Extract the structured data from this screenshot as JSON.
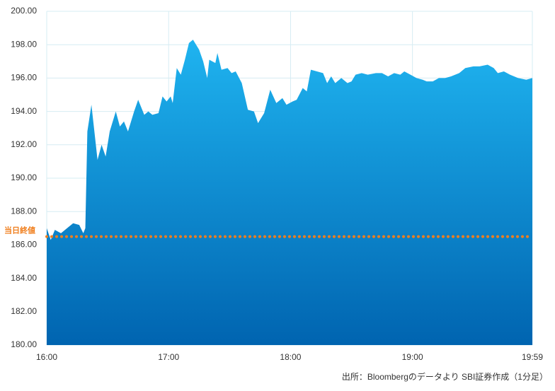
{
  "chart_data": {
    "type": "area",
    "x": [
      "16:00",
      "16:02",
      "16:04",
      "16:07",
      "16:10",
      "16:13",
      "16:16",
      "16:18",
      "16:19",
      "16:20",
      "16:22",
      "16:25",
      "16:27",
      "16:29",
      "16:31",
      "16:34",
      "16:36",
      "16:38",
      "16:40",
      "16:43",
      "16:45",
      "16:48",
      "16:50",
      "16:52",
      "16:55",
      "16:57",
      "16:59",
      "17:01",
      "17:02",
      "17:04",
      "17:06",
      "17:08",
      "17:10",
      "17:12",
      "17:15",
      "17:17",
      "17:19",
      "17:20",
      "17:23",
      "17:24",
      "17:26",
      "17:29",
      "17:31",
      "17:33",
      "17:36",
      "17:39",
      "17:42",
      "17:44",
      "17:47",
      "17:50",
      "17:53",
      "17:56",
      "17:58",
      "18:01",
      "18:03",
      "18:06",
      "18:08",
      "18:10",
      "18:13",
      "18:16",
      "18:18",
      "18:20",
      "18:22",
      "18:25",
      "18:28",
      "18:30",
      "18:32",
      "18:35",
      "18:38",
      "18:42",
      "18:45",
      "18:48",
      "18:51",
      "18:54",
      "18:56",
      "18:59",
      "19:02",
      "19:05",
      "19:07",
      "19:10",
      "19:13",
      "19:16",
      "19:19",
      "19:23",
      "19:26",
      "19:30",
      "19:33",
      "19:37",
      "19:40",
      "19:42",
      "19:45",
      "19:48",
      "19:52",
      "19:56",
      "19:59"
    ],
    "values": [
      187.0,
      186.3,
      186.9,
      186.7,
      187.0,
      187.3,
      187.2,
      186.7,
      187.0,
      192.8,
      194.4,
      191.1,
      192.0,
      191.3,
      192.8,
      194.0,
      193.1,
      193.4,
      192.8,
      194.0,
      194.7,
      193.8,
      194.0,
      193.8,
      193.9,
      194.9,
      194.6,
      194.9,
      194.5,
      196.6,
      196.2,
      197.1,
      198.1,
      198.3,
      197.7,
      197.0,
      196.0,
      197.1,
      196.9,
      197.5,
      196.5,
      196.6,
      196.3,
      196.4,
      195.7,
      194.1,
      194.0,
      193.3,
      193.9,
      195.3,
      194.5,
      194.8,
      194.4,
      194.6,
      194.7,
      195.4,
      195.2,
      196.5,
      196.4,
      196.3,
      195.7,
      196.1,
      195.7,
      196.0,
      195.7,
      195.8,
      196.2,
      196.3,
      196.2,
      196.3,
      196.3,
      196.1,
      196.3,
      196.2,
      196.4,
      196.2,
      196.0,
      195.9,
      195.8,
      195.8,
      196.0,
      196.0,
      196.1,
      196.3,
      196.6,
      196.7,
      196.7,
      196.8,
      196.6,
      196.3,
      196.4,
      196.2,
      196.0,
      195.9,
      196.0
    ],
    "colors": [
      "#1fb4f0",
      "#0064b0"
    ],
    "xlim": [
      "16:00",
      "19:59"
    ],
    "xticks": [
      "16:00",
      "17:00",
      "18:00",
      "19:00",
      "19:59"
    ],
    "ylim": [
      180,
      200
    ],
    "yticks": [
      {
        "value": 180,
        "label": "180.00"
      },
      {
        "value": 182,
        "label": "182.00"
      },
      {
        "value": 184,
        "label": "184.00"
      },
      {
        "value": 186,
        "label": "186.00"
      },
      {
        "value": 188,
        "label": "188.00"
      },
      {
        "value": 190,
        "label": "190.00"
      },
      {
        "value": 192,
        "label": "192.00"
      },
      {
        "value": 194,
        "label": "194.00"
      },
      {
        "value": 196,
        "label": "196.00"
      },
      {
        "value": 198,
        "label": "198.00"
      },
      {
        "value": 200,
        "label": "200.00"
      }
    ],
    "grid": true,
    "reference_line": {
      "label": "当日終値",
      "value": 186.5,
      "color": "#f07f1e"
    },
    "source": "出所：Bloombergのデータより SBI証券作成（1分足）"
  }
}
